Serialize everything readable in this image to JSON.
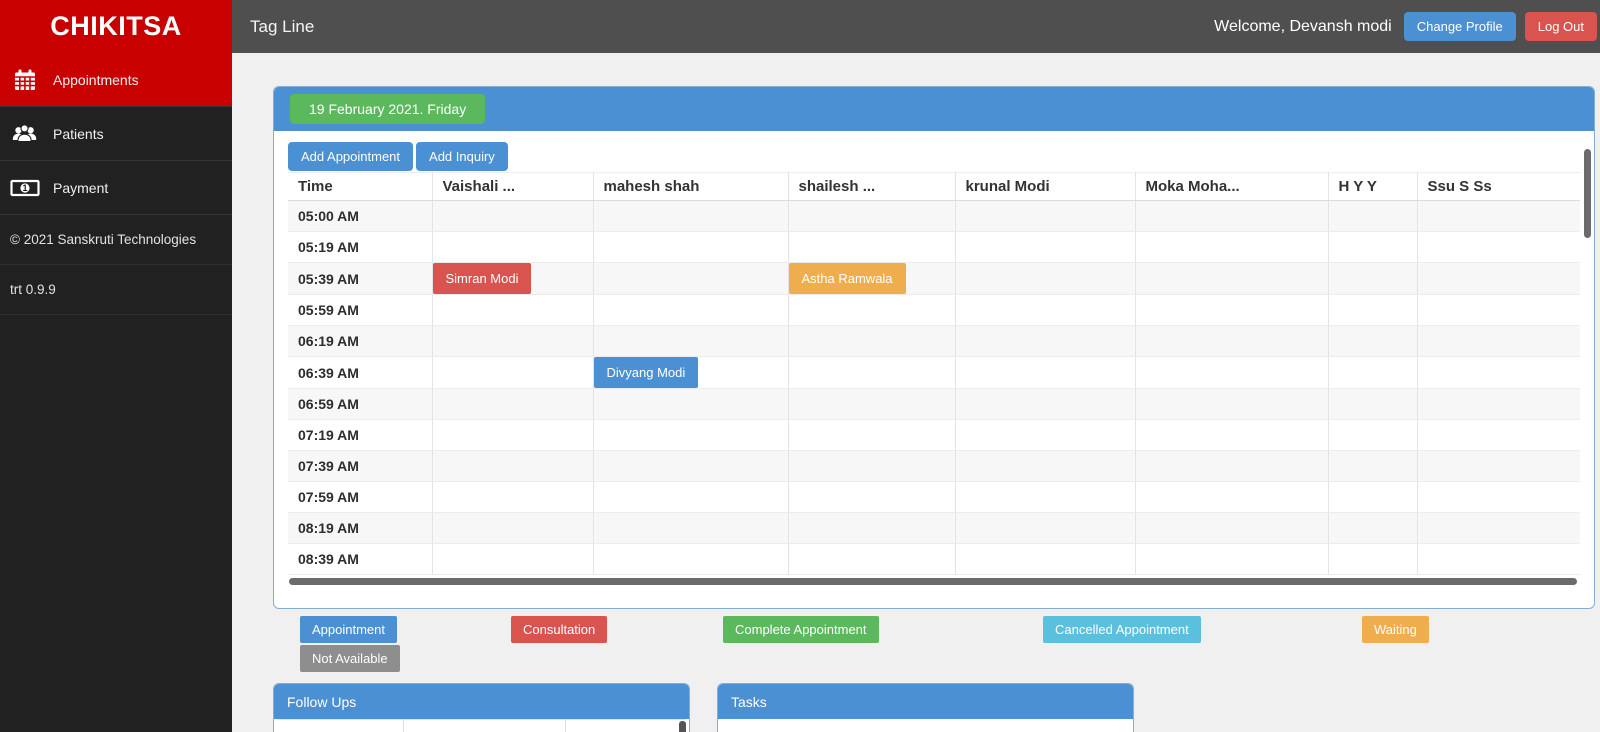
{
  "brand": {
    "name": "CHIKITSA"
  },
  "topbar": {
    "tagline": "Tag Line",
    "welcome": "Welcome, Devansh modi",
    "change_profile_label": "Change Profile",
    "log_out_label": "Log Out"
  },
  "sidebar": {
    "items": [
      {
        "label": "Appointments",
        "icon": "calendar-icon",
        "active": true
      },
      {
        "label": "Patients",
        "icon": "patients-icon",
        "active": false
      },
      {
        "label": "Payment",
        "icon": "payment-icon",
        "active": false
      }
    ],
    "copyright": "© 2021 Sanskruti Technologies",
    "version": "trt 0.9.9"
  },
  "calendar": {
    "date_label": "19 February 2021. Friday",
    "add_appointment_label": "Add Appointment",
    "add_inquiry_label": "Add Inquiry",
    "columns": [
      "Time",
      "Vaishali ...",
      "mahesh shah",
      "shailesh ...",
      "krunal Modi",
      "Moka Moha...",
      "H Y Y",
      "Ssu S Ss"
    ],
    "times": [
      "05:00 AM",
      "05:19 AM",
      "05:39 AM",
      "05:59 AM",
      "06:19 AM",
      "06:39 AM",
      "06:59 AM",
      "07:19 AM",
      "07:39 AM",
      "07:59 AM",
      "08:19 AM",
      "08:39 AM"
    ],
    "appointments": [
      {
        "name": "Simran Modi",
        "time": "05:39 AM",
        "column": "Vaishali ...",
        "status": "consultation",
        "color": "#d9534f"
      },
      {
        "name": "Astha Ramwala",
        "time": "05:39 AM",
        "column": "shailesh ...",
        "status": "waiting",
        "color": "#f0ad4e"
      },
      {
        "name": "Divyang Modi",
        "time": "06:39 AM",
        "column": "mahesh shah",
        "status": "appointment",
        "color": "#4a90d2"
      }
    ]
  },
  "legend": [
    {
      "label": "Appointment",
      "color": "#4a90d2"
    },
    {
      "label": "Consultation",
      "color": "#d9534f"
    },
    {
      "label": "Complete Appointment",
      "color": "#5cb85c"
    },
    {
      "label": "Cancelled Appointment",
      "color": "#5bc0de"
    },
    {
      "label": "Waiting",
      "color": "#f0ad4e"
    },
    {
      "label": "Not Available",
      "color": "#8e8e8e"
    }
  ],
  "panels": {
    "follow_ups_title": "Follow Ups",
    "tasks_title": "Tasks"
  },
  "colors": {
    "brand_red": "#c90000",
    "accent_blue": "#4a90d2",
    "danger_red": "#d9534f",
    "success_green": "#5cb85c",
    "info_blue": "#5bc0de",
    "warning_orange": "#f0ad4e",
    "gray": "#8e8e8e"
  }
}
